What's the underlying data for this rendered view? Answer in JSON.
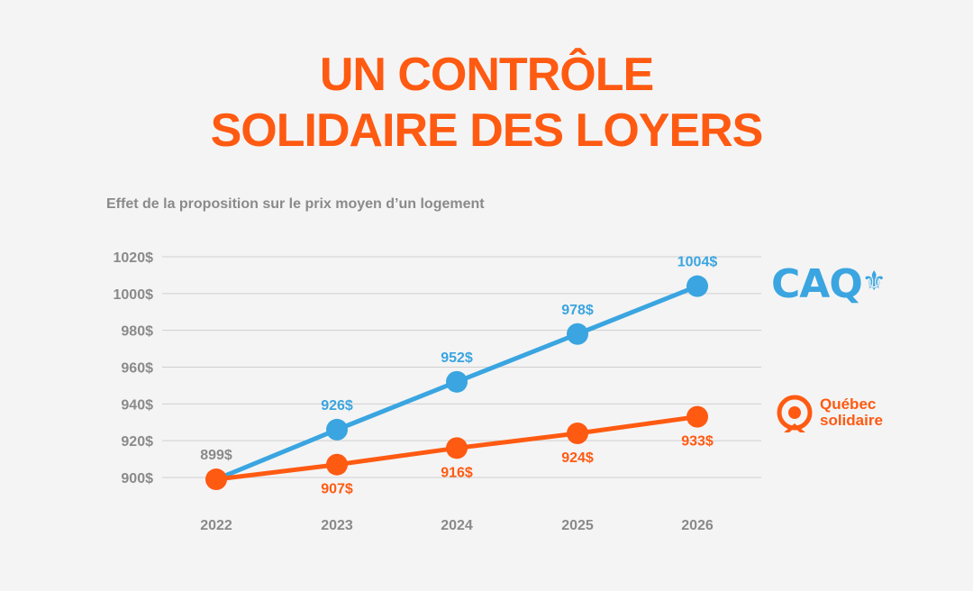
{
  "title_line1": "UN CONTRÔLE",
  "title_line2": "SOLIDAIRE DES LOYERS",
  "subtitle": "Effet de la proposition sur le prix moyen d’un logement",
  "colors": {
    "accent": "#ff5a12",
    "caq_blue": "#3aa5e0",
    "grid": "#cfcfcf",
    "axis_text": "#8a8a8a"
  },
  "legend": {
    "caq_logo_text": "CAQ",
    "qs_line1": "Québec",
    "qs_line2": "solidaire"
  },
  "chart_data": {
    "type": "line",
    "x": [
      "2022",
      "2023",
      "2024",
      "2025",
      "2026"
    ],
    "ylim": [
      900,
      1020
    ],
    "yticks": [
      900,
      920,
      940,
      960,
      980,
      1000,
      1020
    ],
    "ytick_labels": [
      "900$",
      "920$",
      "940$",
      "960$",
      "980$",
      "1000$",
      "1020$"
    ],
    "series": [
      {
        "name": "CAQ",
        "color": "#3aa5e0",
        "values": [
          899,
          926,
          952,
          978,
          1004
        ],
        "labels": [
          "",
          "926$",
          "952$",
          "978$",
          "1004$"
        ]
      },
      {
        "name": "Québec solidaire",
        "color": "#ff5a12",
        "values": [
          899,
          907,
          916,
          924,
          933
        ],
        "labels": [
          "899$",
          "907$",
          "916$",
          "924$",
          "933$"
        ]
      }
    ]
  }
}
